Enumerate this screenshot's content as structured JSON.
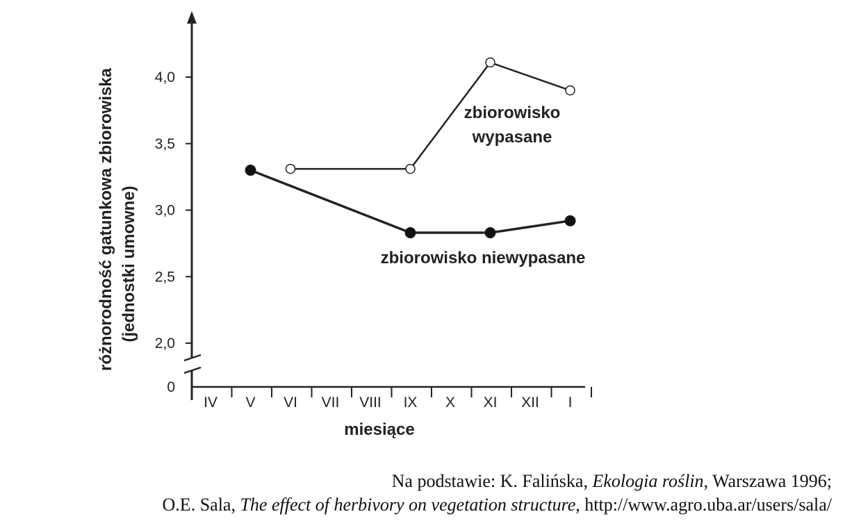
{
  "chart_data": {
    "type": "line",
    "xlabel": "miesiące",
    "ylabel": "różnorodność gatunkowa zbiorowiska",
    "ylabel_sub": "(jednostki umowne)",
    "categories": [
      "IV",
      "V",
      "VI",
      "VII",
      "VIII",
      "IX",
      "X",
      "XI",
      "XII",
      "I"
    ],
    "y_ticks": [
      "4,0",
      "3,5",
      "3,0",
      "2,5",
      "2,0"
    ],
    "y_tick_values": [
      4.0,
      3.5,
      3.0,
      2.5,
      2.0
    ],
    "y_zero_label": "0",
    "ylim": [
      2.0,
      4.2
    ],
    "axis_break": true,
    "grid": false,
    "series": [
      {
        "name": "zbiorowisko wypasane",
        "label_lines": [
          "zbiorowisko",
          "wypasane"
        ],
        "marker": "open-circle",
        "x": [
          "VI",
          "IX",
          "XI",
          "I"
        ],
        "values": [
          3.31,
          3.31,
          4.11,
          3.9
        ]
      },
      {
        "name": "zbiorowisko niewypasane",
        "label_lines": [
          "zbiorowisko niewypasane"
        ],
        "marker": "filled-circle",
        "x": [
          "V",
          "IX",
          "XI",
          "I"
        ],
        "values": [
          3.3,
          2.83,
          2.83,
          2.92
        ]
      }
    ]
  },
  "source": {
    "line1_prefix": "Na podstawie: K. Falińska, ",
    "line1_title": "Ekologia roślin",
    "line1_suffix": ", Warszawa 1996;",
    "line2_prefix": "O.E. Sala, ",
    "line2_title": "The effect of herbivory on vegetation structure",
    "line2_suffix": ", http://www.agro.uba.ar/users/sala/"
  }
}
